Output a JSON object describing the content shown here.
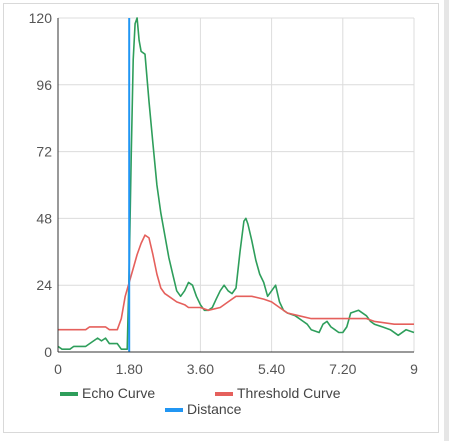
{
  "chart_data": {
    "type": "line",
    "xlim": [
      0,
      9
    ],
    "ylim": [
      0,
      120
    ],
    "x_ticks": [
      0,
      1.8,
      3.6,
      5.4,
      7.2,
      9
    ],
    "x_tick_labels": [
      "0",
      "1.80",
      "3.60",
      "5.40",
      "7.20",
      "9"
    ],
    "y_ticks": [
      0,
      24,
      48,
      72,
      96,
      120
    ],
    "y_tick_labels": [
      "0",
      "24",
      "48",
      "72",
      "96",
      "120"
    ],
    "grid": true,
    "legend_position": "bottom",
    "series": [
      {
        "name": "Echo Curve",
        "color": "#2e9e5b",
        "points": [
          [
            0,
            2
          ],
          [
            0.1,
            1
          ],
          [
            0.3,
            1
          ],
          [
            0.4,
            2
          ],
          [
            0.7,
            2
          ],
          [
            0.9,
            4
          ],
          [
            1.0,
            5
          ],
          [
            1.1,
            4
          ],
          [
            1.2,
            5
          ],
          [
            1.3,
            3
          ],
          [
            1.5,
            3
          ],
          [
            1.6,
            1
          ],
          [
            1.75,
            1
          ],
          [
            1.8,
            30
          ],
          [
            1.85,
            70
          ],
          [
            1.9,
            105
          ],
          [
            1.95,
            118
          ],
          [
            2.0,
            120
          ],
          [
            2.05,
            112
          ],
          [
            2.1,
            108
          ],
          [
            2.2,
            107
          ],
          [
            2.3,
            90
          ],
          [
            2.4,
            75
          ],
          [
            2.5,
            60
          ],
          [
            2.6,
            50
          ],
          [
            2.7,
            42
          ],
          [
            2.8,
            34
          ],
          [
            2.9,
            28
          ],
          [
            3.0,
            22
          ],
          [
            3.1,
            20
          ],
          [
            3.2,
            22
          ],
          [
            3.3,
            25
          ],
          [
            3.4,
            24
          ],
          [
            3.5,
            20
          ],
          [
            3.6,
            17
          ],
          [
            3.7,
            15
          ],
          [
            3.8,
            15
          ],
          [
            3.9,
            16
          ],
          [
            4.0,
            19
          ],
          [
            4.1,
            22
          ],
          [
            4.2,
            24
          ],
          [
            4.3,
            22
          ],
          [
            4.4,
            21
          ],
          [
            4.5,
            23
          ],
          [
            4.6,
            36
          ],
          [
            4.7,
            47
          ],
          [
            4.75,
            48
          ],
          [
            4.8,
            46
          ],
          [
            4.9,
            40
          ],
          [
            5.0,
            33
          ],
          [
            5.1,
            28
          ],
          [
            5.2,
            25
          ],
          [
            5.3,
            20
          ],
          [
            5.4,
            22
          ],
          [
            5.5,
            24
          ],
          [
            5.6,
            18
          ],
          [
            5.7,
            15
          ],
          [
            5.8,
            14
          ],
          [
            6.0,
            13
          ],
          [
            6.2,
            11
          ],
          [
            6.3,
            10
          ],
          [
            6.4,
            8
          ],
          [
            6.6,
            7
          ],
          [
            6.7,
            10
          ],
          [
            6.8,
            11
          ],
          [
            6.9,
            9
          ],
          [
            7.0,
            8
          ],
          [
            7.1,
            7
          ],
          [
            7.2,
            7
          ],
          [
            7.3,
            9
          ],
          [
            7.4,
            14
          ],
          [
            7.6,
            15
          ],
          [
            7.8,
            13
          ],
          [
            7.9,
            11
          ],
          [
            8.0,
            10
          ],
          [
            8.2,
            9
          ],
          [
            8.4,
            8
          ],
          [
            8.6,
            6
          ],
          [
            8.8,
            8
          ],
          [
            9.0,
            7
          ]
        ]
      },
      {
        "name": "Threshold Curve",
        "color": "#e5605c",
        "points": [
          [
            0,
            8
          ],
          [
            0.7,
            8
          ],
          [
            0.8,
            9
          ],
          [
            1.2,
            9
          ],
          [
            1.3,
            8
          ],
          [
            1.5,
            8
          ],
          [
            1.6,
            12
          ],
          [
            1.7,
            20
          ],
          [
            1.8,
            25
          ],
          [
            1.9,
            30
          ],
          [
            2.0,
            35
          ],
          [
            2.1,
            39
          ],
          [
            2.2,
            42
          ],
          [
            2.3,
            41
          ],
          [
            2.4,
            35
          ],
          [
            2.5,
            28
          ],
          [
            2.6,
            23
          ],
          [
            2.7,
            21
          ],
          [
            2.8,
            20
          ],
          [
            3.0,
            18
          ],
          [
            3.2,
            17
          ],
          [
            3.3,
            16
          ],
          [
            3.6,
            16
          ],
          [
            3.8,
            15
          ],
          [
            4.1,
            16
          ],
          [
            4.3,
            18
          ],
          [
            4.5,
            20
          ],
          [
            4.9,
            20
          ],
          [
            5.2,
            19
          ],
          [
            5.4,
            18
          ],
          [
            5.6,
            16
          ],
          [
            5.8,
            14
          ],
          [
            6.1,
            13
          ],
          [
            6.4,
            12
          ],
          [
            6.7,
            12
          ],
          [
            7.2,
            12
          ],
          [
            7.5,
            12
          ],
          [
            7.8,
            12
          ],
          [
            8.0,
            11
          ],
          [
            8.5,
            10
          ],
          [
            9.0,
            10
          ]
        ]
      },
      {
        "name": "Distance",
        "color": "#2196f3",
        "points": [
          [
            1.8,
            0
          ],
          [
            1.8,
            120
          ]
        ]
      }
    ]
  }
}
